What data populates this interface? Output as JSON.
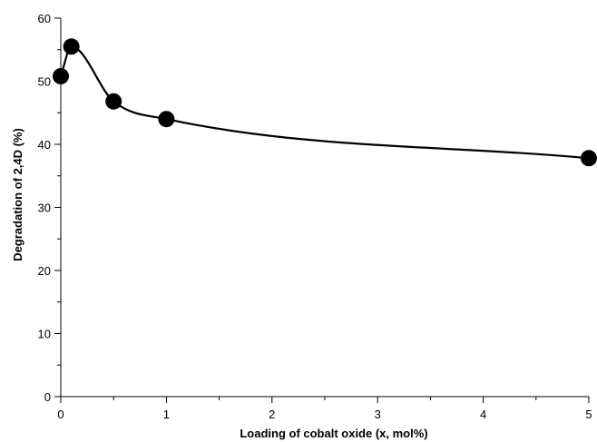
{
  "chart_data": {
    "type": "scatter",
    "title": "",
    "xlabel": "Loading of cobalt oxide (x, mol%)",
    "ylabel": "Degradation of 2,4D (%)",
    "xlim": [
      0,
      5
    ],
    "ylim": [
      0,
      60
    ],
    "x_major_ticks": [
      0,
      1,
      2,
      3,
      4,
      5
    ],
    "y_major_ticks": [
      0,
      10,
      20,
      30,
      40,
      50,
      60
    ],
    "x_tick_labels": [
      "0",
      "1",
      "2",
      "3",
      "4",
      "5"
    ],
    "y_tick_labels": [
      "0",
      "10",
      "20",
      "30",
      "40",
      "50",
      "60"
    ],
    "grid": false,
    "legend": "none",
    "series": [
      {
        "x": [
          0,
          0.1,
          0.5,
          1,
          5
        ],
        "y": [
          50.8,
          55.5,
          46.8,
          44.0,
          37.8
        ],
        "marker": "filled-circle",
        "color": "#000000",
        "fit_line": "smooth"
      }
    ]
  }
}
